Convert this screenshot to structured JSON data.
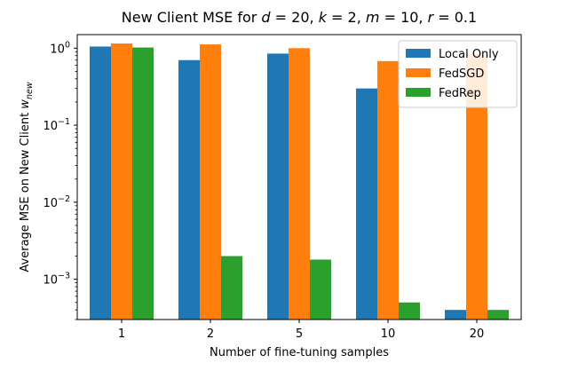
{
  "chart_data": {
    "type": "bar",
    "title_parts": [
      {
        "text": "New Client MSE for ",
        "italic": false
      },
      {
        "text": "d",
        "italic": true
      },
      {
        "text": " = 20, ",
        "italic": false
      },
      {
        "text": "k",
        "italic": true
      },
      {
        "text": " = 2, ",
        "italic": false
      },
      {
        "text": "m",
        "italic": true
      },
      {
        "text": " = 10, ",
        "italic": false
      },
      {
        "text": "r",
        "italic": true
      },
      {
        "text": " = 0.1",
        "italic": false
      }
    ],
    "xlabel": "Number of fine-tuning samples",
    "ylabel_main": "Average MSE on New Client ",
    "ylabel_math": "w",
    "ylabel_sub": "new",
    "categories": [
      "1",
      "2",
      "5",
      "10",
      "20"
    ],
    "yscale": "log",
    "ylim": [
      0.0003,
      1.5
    ],
    "yticks": [
      {
        "value": 1,
        "base": "10",
        "exp": "0"
      },
      {
        "value": 0.1,
        "base": "10",
        "exp": "−1"
      },
      {
        "value": 0.01,
        "base": "10",
        "exp": "−2"
      },
      {
        "value": 0.001,
        "base": "10",
        "exp": "−3"
      }
    ],
    "series": [
      {
        "name": "Local Only",
        "color": "#1f77b4",
        "values": [
          1.05,
          0.7,
          0.85,
          0.3,
          0.0004
        ]
      },
      {
        "name": "FedSGD",
        "color": "#ff7f0e",
        "values": [
          1.15,
          1.12,
          1.0,
          0.68,
          0.85
        ]
      },
      {
        "name": "FedRep",
        "color": "#2ca02c",
        "values": [
          1.02,
          0.002,
          0.0018,
          0.0005,
          0.0004
        ]
      }
    ],
    "legend_position": "top-right",
    "grid": false
  }
}
